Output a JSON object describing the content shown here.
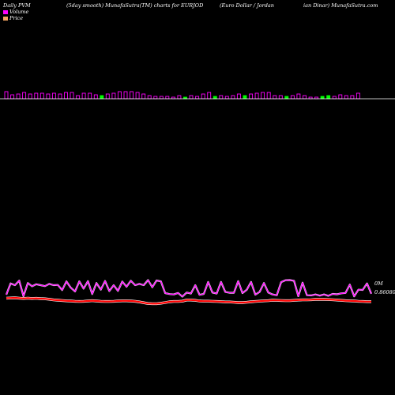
{
  "header": {
    "left": "Daily PVM",
    "center": "(5day smooth) MunafaSutra(TM) charts for EURJOD",
    "right_a": "(Euro  Dollar / Jordan",
    "right_b": "ian  Dinar) MunafaSutra.com"
  },
  "legend": [
    {
      "label": "Volume",
      "color": "#ff00ff"
    },
    {
      "label": "Price",
      "color": "#f4a460"
    }
  ],
  "right_labels": {
    "volume": "0M",
    "price": "0.86080"
  },
  "colors": {
    "volume_up": "#ff00ff",
    "volume_down": "#00ff00",
    "price_line": "#ff0000",
    "smooth_line": "#ff00ff",
    "baseline": "#ffffff"
  },
  "chart_data": {
    "type": "bar+line",
    "volume_bars": [
      {
        "h": 9,
        "c": "m"
      },
      {
        "h": 5,
        "c": "m"
      },
      {
        "h": 6,
        "c": "m"
      },
      {
        "h": 8,
        "c": "m"
      },
      {
        "h": 6,
        "c": "m"
      },
      {
        "h": 7,
        "c": "m"
      },
      {
        "h": 7,
        "c": "m"
      },
      {
        "h": 6,
        "c": "m"
      },
      {
        "h": 7,
        "c": "m"
      },
      {
        "h": 6,
        "c": "m"
      },
      {
        "h": 8,
        "c": "m"
      },
      {
        "h": 8,
        "c": "m"
      },
      {
        "h": 4,
        "c": "m"
      },
      {
        "h": 7,
        "c": "m"
      },
      {
        "h": 7,
        "c": "m"
      },
      {
        "h": 5,
        "c": "m"
      },
      {
        "h": 4,
        "c": "g"
      },
      {
        "h": 6,
        "c": "m"
      },
      {
        "h": 7,
        "c": "m"
      },
      {
        "h": 9,
        "c": "m"
      },
      {
        "h": 9,
        "c": "m"
      },
      {
        "h": 9,
        "c": "m"
      },
      {
        "h": 8,
        "c": "m"
      },
      {
        "h": 6,
        "c": "m"
      },
      {
        "h": 4,
        "c": "m"
      },
      {
        "h": 3,
        "c": "m"
      },
      {
        "h": 3,
        "c": "m"
      },
      {
        "h": 3,
        "c": "m"
      },
      {
        "h": 2,
        "c": "m"
      },
      {
        "h": 4,
        "c": "m"
      },
      {
        "h": 2,
        "c": "g"
      },
      {
        "h": 4,
        "c": "m"
      },
      {
        "h": 3,
        "c": "m"
      },
      {
        "h": 6,
        "c": "m"
      },
      {
        "h": 8,
        "c": "m"
      },
      {
        "h": 3,
        "c": "g"
      },
      {
        "h": 4,
        "c": "m"
      },
      {
        "h": 3,
        "c": "m"
      },
      {
        "h": 4,
        "c": "m"
      },
      {
        "h": 6,
        "c": "m"
      },
      {
        "h": 4,
        "c": "g"
      },
      {
        "h": 6,
        "c": "m"
      },
      {
        "h": 7,
        "c": "m"
      },
      {
        "h": 8,
        "c": "m"
      },
      {
        "h": 8,
        "c": "m"
      },
      {
        "h": 4,
        "c": "m"
      },
      {
        "h": 4,
        "c": "m"
      },
      {
        "h": 3,
        "c": "g"
      },
      {
        "h": 4,
        "c": "m"
      },
      {
        "h": 6,
        "c": "m"
      },
      {
        "h": 4,
        "c": "m"
      },
      {
        "h": 2,
        "c": "m"
      },
      {
        "h": 2,
        "c": "m"
      },
      {
        "h": 3,
        "c": "g"
      },
      {
        "h": 4,
        "c": "g"
      },
      {
        "h": 3,
        "c": "m"
      },
      {
        "h": 5,
        "c": "m"
      },
      {
        "h": 4,
        "c": "m"
      },
      {
        "h": 4,
        "c": "m"
      },
      {
        "h": 7,
        "c": "m"
      }
    ],
    "smooth_line": [
      0.21,
      0.8,
      0.71,
      0.95,
      0.13,
      0.82,
      0.65,
      0.76,
      0.71,
      0.66,
      0.78,
      0.71,
      0.72,
      0.45,
      0.91,
      0.58,
      0.38,
      0.91,
      0.53,
      0.92,
      0.24,
      0.82,
      0.47,
      0.93,
      0.4,
      0.71,
      0.41,
      0.9,
      0.63,
      0.94,
      0.71,
      0.78,
      0.71,
      0.98,
      0.6,
      0.96,
      0.91,
      0.29,
      0.24,
      0.22,
      0.3,
      0.11,
      0.32,
      0.27,
      0.71,
      0.2,
      0.25,
      0.88,
      0.32,
      0.27,
      0.88,
      0.35,
      0.31,
      0.31,
      0.92,
      0.29,
      0.47,
      0.88,
      0.21,
      0.36,
      0.82,
      0.32,
      0.22,
      0.18,
      0.87,
      0.97,
      0.98,
      0.94,
      0.13,
      0.84,
      0.18,
      0.17,
      0.22,
      0.16,
      0.22,
      0.15,
      0.25,
      0.23,
      0.28,
      0.3,
      0.74,
      0.12,
      0.47,
      0.46,
      0.8,
      0.26
    ],
    "price_line": [
      0.48,
      0.49,
      0.5,
      0.48,
      0.46,
      0.48,
      0.46,
      0.47,
      0.45,
      0.44,
      0.41,
      0.37,
      0.35,
      0.33,
      0.31,
      0.3,
      0.28,
      0.27,
      0.28,
      0.3,
      0.32,
      0.3,
      0.28,
      0.27,
      0.27,
      0.28,
      0.3,
      0.31,
      0.31,
      0.3,
      0.28,
      0.24,
      0.19,
      0.14,
      0.13,
      0.13,
      0.16,
      0.2,
      0.25,
      0.27,
      0.27,
      0.29,
      0.36,
      0.36,
      0.34,
      0.3,
      0.29,
      0.29,
      0.28,
      0.27,
      0.26,
      0.24,
      0.24,
      0.22,
      0.2,
      0.2,
      0.22,
      0.25,
      0.27,
      0.29,
      0.31,
      0.32,
      0.35,
      0.34,
      0.33,
      0.32,
      0.32,
      0.34,
      0.36,
      0.37,
      0.37,
      0.38,
      0.4,
      0.4,
      0.4,
      0.39,
      0.38,
      0.36,
      0.34,
      0.32,
      0.31,
      0.3,
      0.28,
      0.27,
      0.26,
      0.26
    ]
  }
}
